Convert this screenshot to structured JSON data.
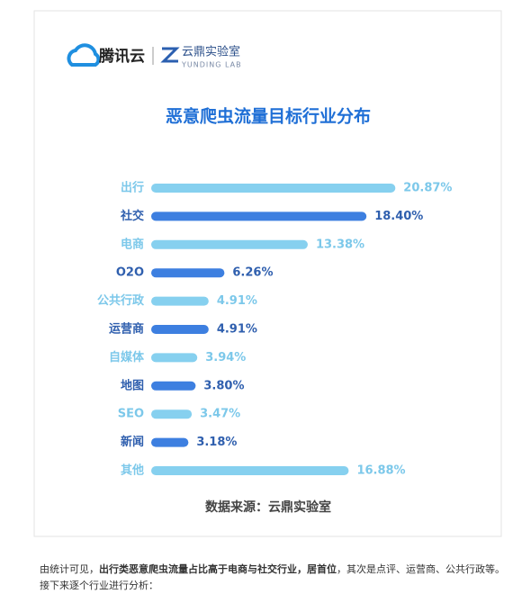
{
  "brand": {
    "name": "腾讯云",
    "lab": "云鼎实验室",
    "lab_en": "YUNDING LAB"
  },
  "chart_data": {
    "type": "hbar",
    "title": "恶意爬虫流量目标行业分布",
    "categories": [
      "出行",
      "社交",
      "电商",
      "O2O",
      "公共行政",
      "运营商",
      "自媒体",
      "地图",
      "SEO",
      "新闻",
      "其他"
    ],
    "values": [
      20.87,
      18.4,
      13.38,
      6.26,
      4.91,
      4.91,
      3.94,
      3.8,
      3.47,
      3.18,
      16.88
    ],
    "value_labels": [
      "20.87%",
      "18.40%",
      "13.38%",
      "6.26%",
      "4.91%",
      "4.91%",
      "3.94%",
      "3.80%",
      "3.47%",
      "3.18%",
      "16.88%"
    ],
    "colors": [
      "#86d0ef",
      "#3d7fe0",
      "#86d0ef",
      "#3d7fe0",
      "#86d0ef",
      "#3d7fe0",
      "#86d0ef",
      "#3d7fe0",
      "#86d0ef",
      "#3d7fe0",
      "#86d0ef"
    ],
    "label_colors": [
      "#7cc8ea",
      "#2f5fae",
      "#7cc8ea",
      "#2f5fae",
      "#7cc8ea",
      "#2f5fae",
      "#7cc8ea",
      "#2f5fae",
      "#7cc8ea",
      "#2f5fae",
      "#7cc8ea"
    ],
    "source": "数据来源：云鼎实验室"
  },
  "paragraph": [
    "由统计可见，",
    "出行类恶意爬虫流量占比高于电商与社交行业，居首位",
    "，其次是点评、运营商、公共行政等。接下来逐个行业进行分析："
  ]
}
